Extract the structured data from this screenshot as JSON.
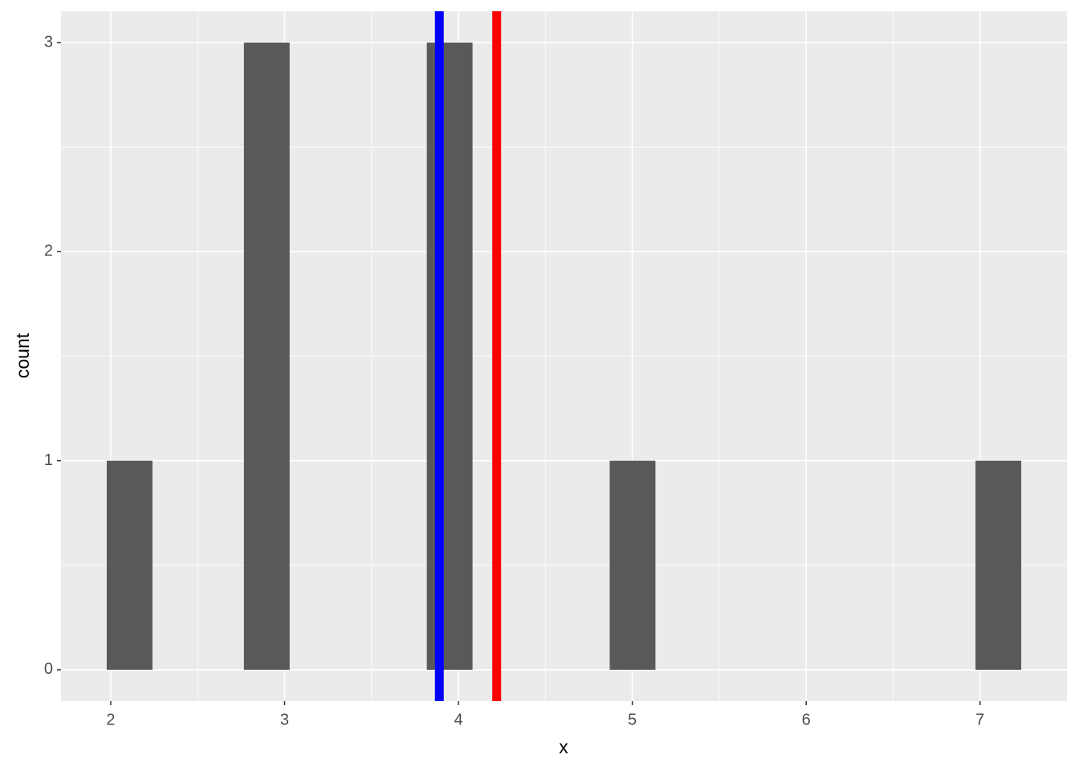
{
  "chart_data": {
    "type": "histogram",
    "bins": [
      1.977,
      2.24,
      2.503,
      2.766,
      3.029,
      3.292,
      3.555,
      3.818,
      4.081,
      4.344,
      4.607,
      4.87,
      5.133,
      5.396,
      5.659,
      5.922,
      6.185,
      6.448,
      6.711,
      6.974,
      7.237
    ],
    "values": [
      1,
      0,
      0,
      3,
      0,
      0,
      0,
      3,
      0,
      0,
      0,
      1,
      0,
      0,
      0,
      0,
      0,
      0,
      0,
      1
    ],
    "color": "#595959",
    "vlines": [
      {
        "value": 3.89,
        "color": "#0000ff"
      },
      {
        "value": 4.22,
        "color": "#ff0000"
      }
    ],
    "xlabel": "x",
    "ylabel": "count",
    "xlim": [
      1.714,
      7.5
    ],
    "xticks": [
      2,
      3,
      4,
      5,
      6,
      7
    ],
    "ylim": [
      -0.15,
      3.15
    ],
    "yticks": [
      0,
      1,
      2,
      3
    ],
    "grid": true,
    "minor_grid": true
  }
}
